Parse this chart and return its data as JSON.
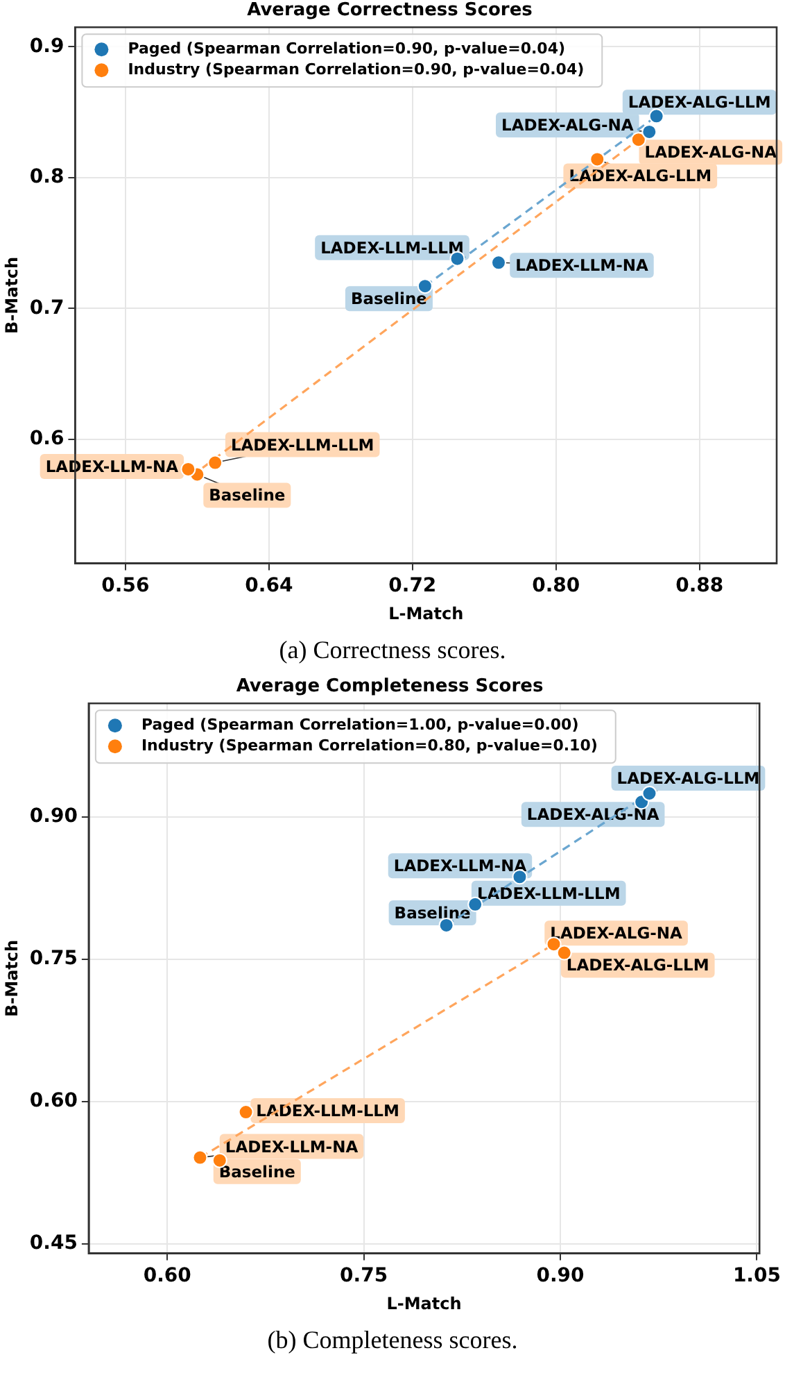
{
  "chart_data": [
    {
      "type": "scatter",
      "title": "Average Correctness Scores",
      "xlabel": "L-Match",
      "ylabel": "B-Match",
      "xlim": [
        0.532,
        0.923
      ],
      "ylim": [
        0.505,
        0.915
      ],
      "xticks": [
        0.56,
        0.64,
        0.72,
        {
          "value": 0.8,
          "label": "0.80"
        },
        0.88
      ],
      "yticks": [
        0.6,
        0.7,
        0.8,
        0.9
      ],
      "grid": true,
      "legend": "top left",
      "annotations": [
        "(a) Correctness scores."
      ],
      "series": [
        {
          "type": "scatter",
          "name": "Paged (Spearman Correlation=0.90, p-value=0.04)",
          "color": "#1f77b4",
          "marker": "circle",
          "x": [
            0.727,
            0.768,
            0.745,
            0.852,
            0.856
          ],
          "values": [
            0.717,
            0.735,
            0.738,
            0.835,
            0.847
          ],
          "value_labels": [
            "Baseline",
            "LADEX-LLM-NA",
            "LADEX-LLM-LLM",
            "LADEX-ALG-NA",
            "LADEX-ALG-LLM"
          ]
        },
        {
          "type": "scatter",
          "name": "Industry (Spearman Correlation=0.90, p-value=0.04)",
          "color": "#ff7f0e",
          "marker": "circle",
          "x": [
            0.6,
            0.595,
            0.61,
            0.846,
            0.823
          ],
          "values": [
            0.573,
            0.577,
            0.582,
            0.829,
            0.814
          ],
          "value_labels": [
            "Baseline",
            "LADEX-LLM-NA",
            "LADEX-LLM-LLM",
            "LADEX-ALG-NA",
            "LADEX-ALG-LLM"
          ]
        },
        {
          "type": "line",
          "color": "#6aa6d0",
          "line_style": "dashed",
          "x": [
            0.727,
            0.856
          ],
          "values": [
            0.717,
            0.847
          ]
        },
        {
          "type": "line",
          "color": "#ffa55c",
          "line_style": "dashed",
          "x": [
            0.603,
            0.846
          ],
          "values": [
            0.578,
            0.829
          ]
        }
      ]
    },
    {
      "type": "scatter",
      "title": "Average Completeness Scores",
      "xlabel": "L-Match",
      "ylabel": "B-Match",
      "xlim": [
        0.54,
        1.052
      ],
      "ylim": [
        0.44,
        1.02
      ],
      "xticks": [
        {
          "value": 0.6,
          "label": "0.60"
        },
        0.75,
        {
          "value": 0.9,
          "label": "0.90"
        },
        1.05
      ],
      "yticks": [
        0.45,
        {
          "value": 0.6,
          "label": "0.60"
        },
        0.75,
        {
          "value": 0.9,
          "label": "0.90"
        }
      ],
      "grid": true,
      "legend": "top left",
      "annotations": [
        "(b) Completeness scores."
      ],
      "series": [
        {
          "type": "scatter",
          "name": "Paged (Spearman Correlation=1.00, p-value=0.00)",
          "color": "#1f77b4",
          "marker": "circle",
          "x": [
            0.813,
            0.869,
            0.835,
            0.962,
            0.968
          ],
          "values": [
            0.786,
            0.837,
            0.808,
            0.916,
            0.925
          ],
          "value_labels": [
            "Baseline",
            "LADEX-LLM-NA",
            "LADEX-LLM-LLM",
            "LADEX-ALG-NA",
            "LADEX-ALG-LLM"
          ]
        },
        {
          "type": "scatter",
          "name": "Industry (Spearman Correlation=0.80, p-value=0.10)",
          "color": "#ff7f0e",
          "marker": "circle",
          "x": [
            0.64,
            0.625,
            0.66,
            0.895,
            0.903
          ],
          "values": [
            0.538,
            0.541,
            0.589,
            0.766,
            0.757
          ],
          "value_labels": [
            "Baseline",
            "LADEX-LLM-NA",
            "LADEX-LLM-LLM",
            "LADEX-ALG-NA",
            "LADEX-ALG-LLM"
          ]
        },
        {
          "type": "line",
          "color": "#6aa6d0",
          "line_style": "dashed",
          "x": [
            0.813,
            0.968
          ],
          "values": [
            0.786,
            0.925
          ]
        },
        {
          "type": "line",
          "color": "#ffa55c",
          "line_style": "dashed",
          "x": [
            0.625,
            0.895
          ],
          "values": [
            0.541,
            0.766
          ]
        }
      ]
    }
  ]
}
